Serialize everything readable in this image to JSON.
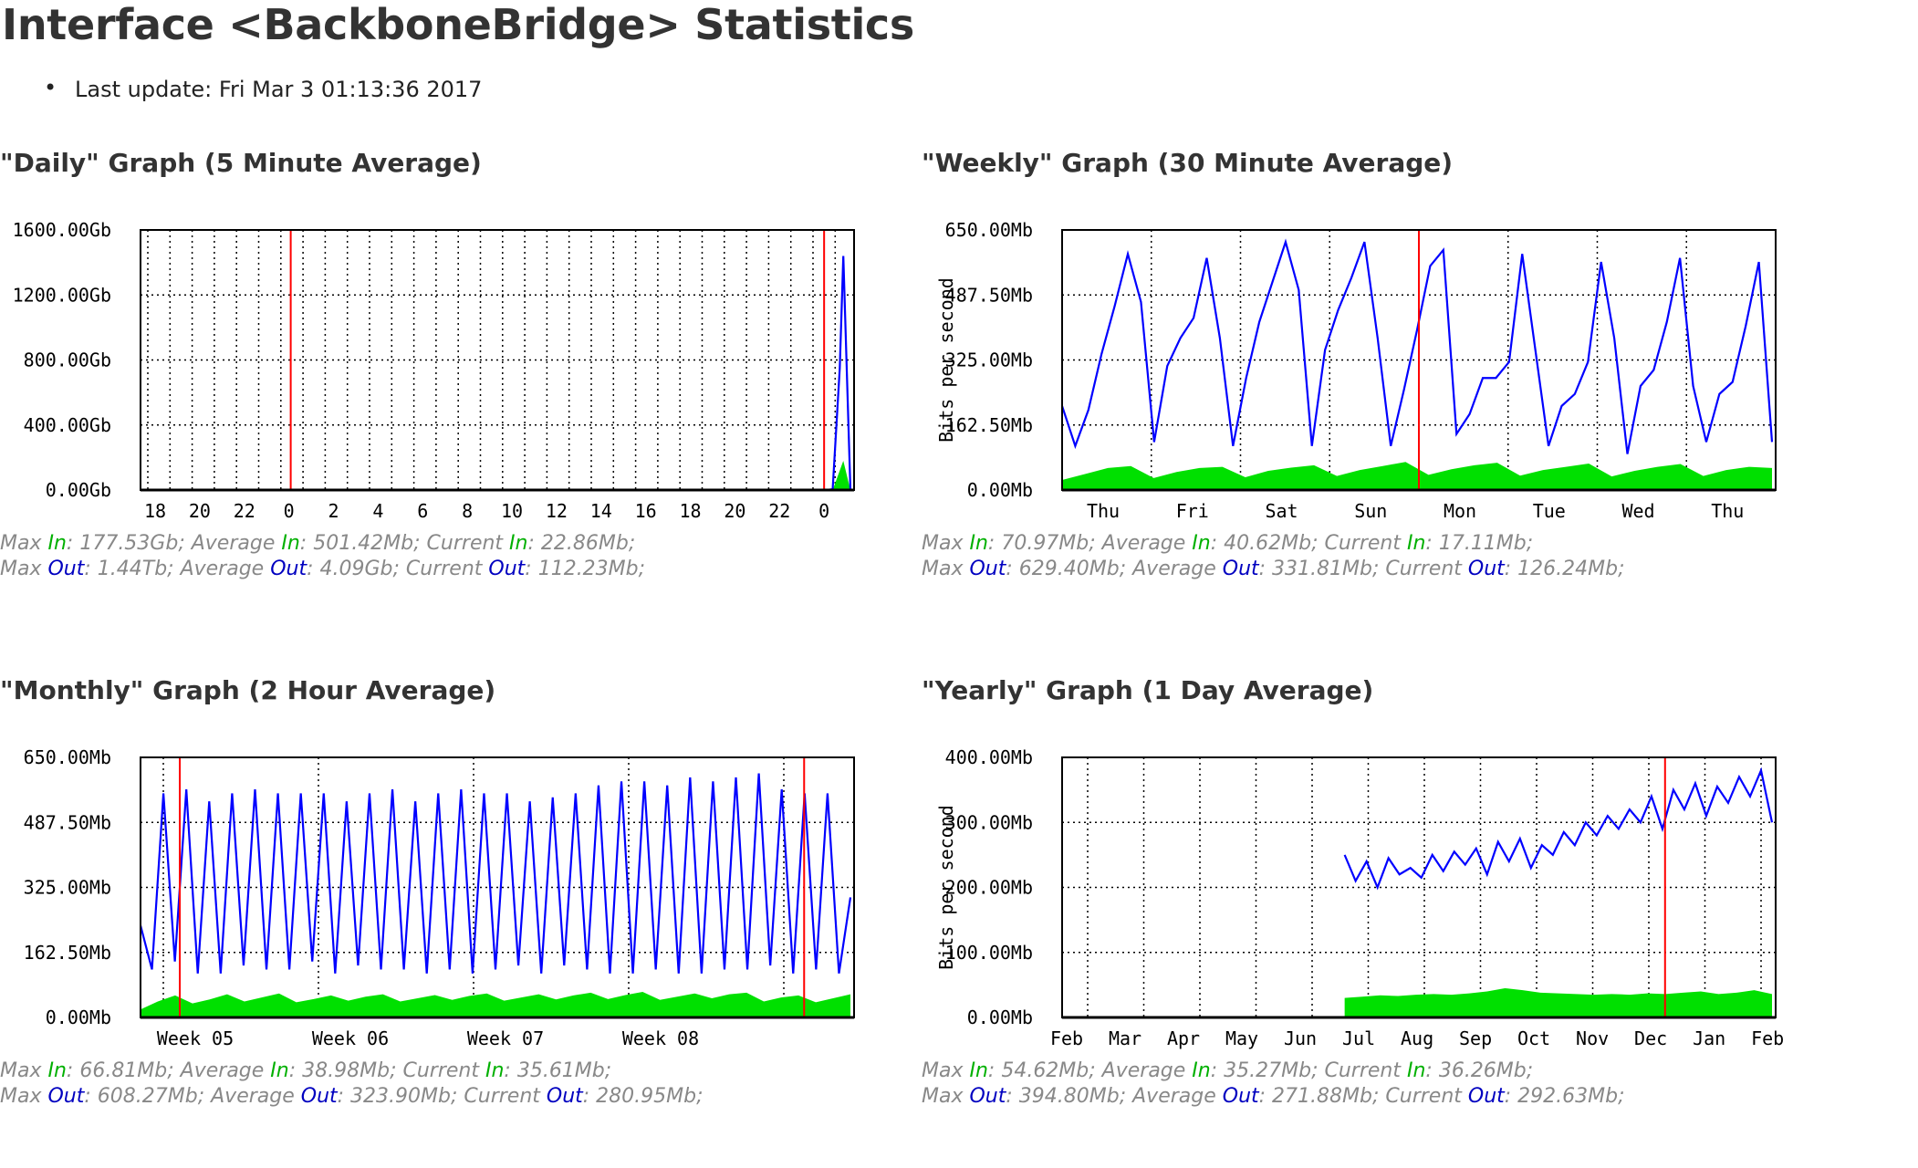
{
  "page": {
    "title": "Interface <BackboneBridge> Statistics",
    "last_update": "Last update: Fri Mar 3 01:13:36 2017"
  },
  "colors": {
    "in": "#00e000",
    "out": "#0000ff",
    "grid": "#000000",
    "marker": "#ff0000"
  },
  "chart_data": [
    {
      "id": "daily",
      "type": "area",
      "title": "\"Daily\" Graph (5 Minute Average)",
      "ylabel": "",
      "ylim": [
        0,
        1600
      ],
      "y_ticks": [
        "0.00Gb",
        "400.00Gb",
        "800.00Gb",
        "1200.00Gb",
        "1600.00Gb"
      ],
      "x_ticks": [
        "18",
        "20",
        "22",
        "0",
        "2",
        "4",
        "6",
        "8",
        "10",
        "12",
        "14",
        "16",
        "18",
        "20",
        "22",
        "0"
      ],
      "series": [
        {
          "name": "In",
          "x": [
            0,
            0.97,
            0.975,
            0.99,
            1.0
          ],
          "values": [
            0,
            0,
            0,
            180,
            0
          ]
        },
        {
          "name": "Out",
          "x": [
            0,
            0.97,
            0.975,
            0.985,
            0.99,
            1.0
          ],
          "values": [
            0,
            2,
            5,
            750,
            1440,
            0
          ]
        }
      ],
      "stats": {
        "max_in": "177.53Gb",
        "avg_in": "501.42Mb",
        "cur_in": "22.86Mb",
        "max_out": "1.44Tb",
        "avg_out": "4.09Gb",
        "cur_out": "112.23Mb"
      }
    },
    {
      "id": "weekly",
      "type": "area",
      "title": "\"Weekly\" Graph (30 Minute Average)",
      "ylabel": "Bits per second",
      "ylim": [
        0,
        650
      ],
      "y_ticks": [
        "0.00Mb",
        "162.50Mb",
        "325.00Mb",
        "487.50Mb",
        "650.00Mb"
      ],
      "x_ticks": [
        "Thu",
        "Fri",
        "Sat",
        "Sun",
        "Mon",
        "Tue",
        "Wed",
        "Thu"
      ],
      "series": [
        {
          "name": "In",
          "values": [
            25,
            40,
            55,
            60,
            30,
            45,
            55,
            58,
            32,
            48,
            56,
            62,
            35,
            50,
            60,
            70,
            38,
            52,
            62,
            68,
            36,
            50,
            58,
            66,
            34,
            48,
            58,
            65,
            35,
            50,
            58,
            55
          ]
        },
        {
          "name": "Out",
          "values": [
            210,
            110,
            200,
            340,
            460,
            590,
            470,
            120,
            310,
            380,
            430,
            580,
            380,
            110,
            280,
            420,
            520,
            620,
            500,
            110,
            350,
            450,
            530,
            620,
            380,
            110,
            250,
            400,
            560,
            600,
            140,
            190,
            280,
            280,
            320,
            590,
            350,
            110,
            210,
            240,
            320,
            570,
            380,
            90,
            260,
            300,
            420,
            580,
            260,
            120,
            240,
            270,
            410,
            570,
            120
          ]
        }
      ],
      "stats": {
        "max_in": "70.97Mb",
        "avg_in": "40.62Mb",
        "cur_in": "17.11Mb",
        "max_out": "629.40Mb",
        "avg_out": "331.81Mb",
        "cur_out": "126.24Mb"
      }
    },
    {
      "id": "monthly",
      "type": "area",
      "title": "\"Monthly\" Graph (2 Hour Average)",
      "ylabel": "",
      "ylim": [
        0,
        650
      ],
      "y_ticks": [
        "0.00Mb",
        "162.50Mb",
        "325.00Mb",
        "487.50Mb",
        "650.00Mb"
      ],
      "x_ticks": [
        "Week 05",
        "Week 06",
        "Week 07",
        "Week 08"
      ],
      "series": [
        {
          "name": "In",
          "values": [
            20,
            40,
            55,
            35,
            45,
            58,
            40,
            50,
            60,
            38,
            46,
            55,
            42,
            52,
            58,
            40,
            48,
            56,
            44,
            54,
            60,
            42,
            50,
            58,
            45,
            55,
            62,
            46,
            56,
            64,
            44,
            52,
            60,
            48,
            58,
            62,
            40,
            50,
            55,
            38,
            48,
            58
          ]
        },
        {
          "name": "Out",
          "values": [
            230,
            120,
            560,
            140,
            570,
            110,
            540,
            110,
            560,
            130,
            570,
            120,
            560,
            120,
            560,
            140,
            560,
            110,
            540,
            130,
            560,
            120,
            570,
            120,
            540,
            110,
            560,
            120,
            570,
            110,
            560,
            120,
            560,
            130,
            540,
            110,
            550,
            130,
            560,
            120,
            580,
            110,
            590,
            110,
            590,
            120,
            580,
            110,
            600,
            110,
            590,
            120,
            600,
            120,
            610,
            130,
            570,
            110,
            560,
            120,
            560,
            110,
            300
          ]
        }
      ],
      "stats": {
        "max_in": "66.81Mb",
        "avg_in": "38.98Mb",
        "cur_in": "35.61Mb",
        "max_out": "608.27Mb",
        "avg_out": "323.90Mb",
        "cur_out": "280.95Mb"
      }
    },
    {
      "id": "yearly",
      "type": "area",
      "title": "\"Yearly\" Graph (1 Day Average)",
      "ylabel": "Bits per second",
      "ylim": [
        0,
        400
      ],
      "y_ticks": [
        "0.00Mb",
        "100.00Mb",
        "200.00Mb",
        "300.00Mb",
        "400.00Mb"
      ],
      "x_ticks": [
        "Feb",
        "Mar",
        "Apr",
        "May",
        "Jun",
        "Jul",
        "Aug",
        "Sep",
        "Oct",
        "Nov",
        "Dec",
        "Jan",
        "Feb"
      ],
      "series": [
        {
          "name": "In",
          "x_start": 0.398,
          "values": [
            30,
            32,
            34,
            33,
            35,
            36,
            35,
            37,
            40,
            45,
            42,
            38,
            37,
            36,
            35,
            36,
            35,
            37,
            36,
            38,
            40,
            36,
            38,
            42,
            36
          ]
        },
        {
          "name": "Out",
          "x_start": 0.398,
          "values": [
            250,
            210,
            240,
            200,
            245,
            220,
            230,
            215,
            250,
            225,
            255,
            235,
            260,
            220,
            270,
            240,
            275,
            230,
            265,
            250,
            285,
            265,
            300,
            280,
            310,
            290,
            320,
            300,
            340,
            290,
            350,
            320,
            360,
            310,
            355,
            330,
            370,
            340,
            380,
            300
          ]
        }
      ],
      "stats": {
        "max_in": "54.62Mb",
        "avg_in": "35.27Mb",
        "cur_in": "36.26Mb",
        "max_out": "394.80Mb",
        "avg_out": "271.88Mb",
        "cur_out": "292.63Mb"
      }
    }
  ],
  "labels": {
    "max": "Max",
    "average": "Average",
    "current": "Current",
    "in": "In",
    "out": "Out"
  }
}
